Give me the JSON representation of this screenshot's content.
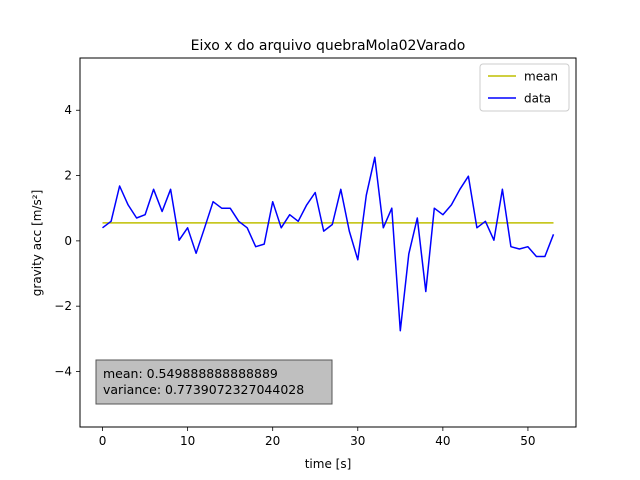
{
  "chart_data": {
    "type": "line",
    "title": "Eixo x do arquivo quebraMola02Varado",
    "xlabel": "time [s]",
    "ylabel": "gravity acc [m/s²]",
    "xlim": [
      -2.65,
      55.65
    ],
    "ylim": [
      -5.7,
      5.6
    ],
    "xticks": [
      0,
      10,
      20,
      30,
      40,
      50
    ],
    "yticks": [
      -4,
      -2,
      0,
      2,
      4
    ],
    "legend_position": "top-right",
    "series": [
      {
        "name": "mean",
        "color": "#bfbf00",
        "x": [
          0,
          53
        ],
        "y": [
          0.549888888888889,
          0.549888888888889
        ]
      },
      {
        "name": "data",
        "color": "#0000ff",
        "x": [
          0,
          1,
          2,
          3,
          4,
          5,
          6,
          7,
          8,
          9,
          10,
          11,
          12,
          13,
          14,
          15,
          16,
          17,
          18,
          19,
          20,
          21,
          22,
          23,
          24,
          25,
          26,
          27,
          28,
          29,
          30,
          31,
          32,
          33,
          34,
          35,
          36,
          37,
          38,
          39,
          40,
          41,
          42,
          43,
          44,
          45,
          46,
          47,
          48,
          49,
          50,
          51,
          52,
          53
        ],
        "y": [
          0.4,
          0.6,
          1.68,
          1.1,
          0.7,
          0.8,
          1.58,
          0.9,
          1.58,
          0.02,
          0.4,
          -0.38,
          0.4,
          1.2,
          1.0,
          1.0,
          0.6,
          0.4,
          -0.18,
          -0.1,
          1.2,
          0.4,
          0.8,
          0.6,
          1.1,
          1.48,
          0.3,
          0.5,
          1.58,
          0.3,
          -0.58,
          1.4,
          2.56,
          0.4,
          1.0,
          -2.75,
          -0.4,
          0.7,
          -1.55,
          1.0,
          0.8,
          1.1,
          1.58,
          1.98,
          0.4,
          0.6,
          0.02,
          1.58,
          -0.18,
          -0.25,
          -0.18,
          -0.48,
          -0.48,
          0.2
        ]
      }
    ],
    "annotation": {
      "lines": [
        "mean: 0.549888888888889",
        "variance: 0.7739072327044028"
      ],
      "position": "bottom-left",
      "background": "#bfbfbf"
    }
  }
}
